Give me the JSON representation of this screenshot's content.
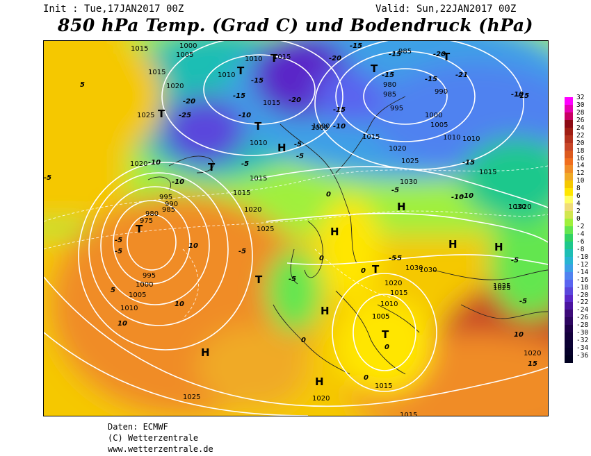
{
  "header": {
    "init": "Init : Tue,17JAN2017 00Z",
    "valid": "Valid: Sun,22JAN2017 00Z",
    "title": "850 hPa Temp. (Grad C) und Bodendruck (hPa)"
  },
  "credits": {
    "source": "Daten: ECMWF",
    "copyright": "(C) Wetterzentrale",
    "url": "www.wetterzentrale.de"
  },
  "legend": {
    "labels": [
      "32",
      "30",
      "28",
      "26",
      "24",
      "22",
      "20",
      "18",
      "16",
      "14",
      "12",
      "10",
      "8",
      "6",
      "4",
      "2",
      "0",
      "-2",
      "-4",
      "-6",
      "-8",
      "-10",
      "-12",
      "-14",
      "-16",
      "-18",
      "-20",
      "-22",
      "-24",
      "-26",
      "-28",
      "-30",
      "-32",
      "-34",
      "-36"
    ],
    "colors": [
      "#ff00ff",
      "#e600b4",
      "#c80064",
      "#8c0a14",
      "#a01e14",
      "#b4321e",
      "#c84628",
      "#dc5a1e",
      "#f06e1e",
      "#f08c28",
      "#f0aa28",
      "#f5c800",
      "#ffe600",
      "#ffff64",
      "#f0dc78",
      "#d2e650",
      "#a0f03c",
      "#64e650",
      "#32d264",
      "#1ec88c",
      "#1ebeb4",
      "#28b4d2",
      "#3ca0e6",
      "#5082f0",
      "#5a64f0",
      "#5a46dc",
      "#5a28c8",
      "#4b14a0",
      "#3c0a78",
      "#2d0560",
      "#1e0048",
      "#14003c",
      "#0a0032",
      "#05002a",
      "#000020"
    ]
  },
  "map": {
    "pressure_labels": [
      "1015",
      "1005",
      "1000",
      "1010",
      "1015",
      "985",
      "1020",
      "1015",
      "1010",
      "1015",
      "980",
      "985",
      "990",
      "995",
      "1000",
      "1005",
      "1010",
      "1010",
      "1015",
      "1020",
      "1025",
      "1030",
      "1030",
      "1000",
      "995",
      "990",
      "985",
      "980",
      "975",
      "995",
      "1000",
      "1005",
      "1010",
      "1015",
      "1020",
      "1025",
      "1015",
      "1020",
      "1025",
      "1030",
      "1025",
      "1020",
      "1015",
      "1010",
      "1005",
      "1025",
      "1020",
      "1015",
      "1015",
      "1020",
      "1015",
      "1010",
      "1020",
      "1025",
      "1030",
      "1005",
      "1000"
    ],
    "temp_labels": [
      "-15",
      "-20",
      "-15",
      "-15",
      "-20",
      "-21",
      "-15",
      "-15",
      "-20",
      "-25",
      "-15",
      "-10",
      "-15",
      "-20",
      "-15",
      "-10",
      "-10",
      "-5",
      "-5",
      "-10",
      "-5",
      "-15",
      "-10",
      "-5",
      "-5",
      "-5",
      "-5",
      "-10",
      "-10",
      "-5",
      "-5",
      "0",
      "0",
      "0",
      "0",
      "-5",
      "-5",
      "-5",
      "5",
      "10",
      "10",
      "10",
      "5",
      "10",
      "15",
      "0",
      "-5",
      "0"
    ],
    "high_symbol": "H",
    "low_symbol": "T"
  }
}
